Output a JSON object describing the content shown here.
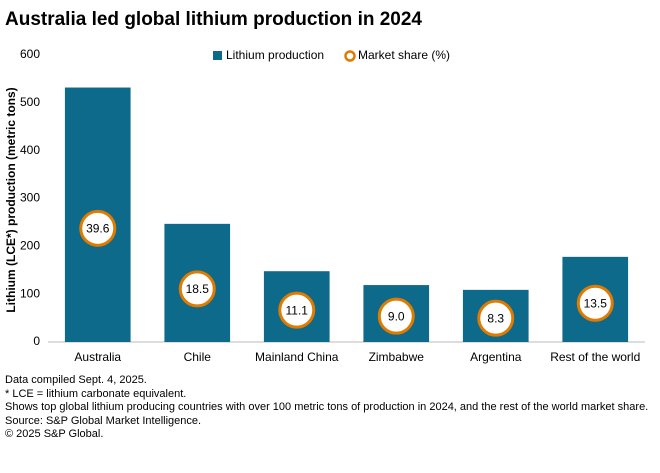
{
  "chart_data": {
    "type": "bar",
    "title": "Australia led global lithium production in 2024",
    "y_label": "Lithium (LCE*) production (metric tons)",
    "categories": [
      "Australia",
      "Chile",
      "Mainland China",
      "Zimbabwe",
      "Argentina",
      "Rest of the world"
    ],
    "series": [
      {
        "name": "Lithium production",
        "color": "#0e6a8a",
        "values": [
          532,
          247,
          148,
          119,
          109,
          178
        ]
      },
      {
        "name": "Market share (%)",
        "color": "#e07b00",
        "axis": "y2",
        "values": [
          39.6,
          18.5,
          11.1,
          9,
          8.3,
          13.5
        ],
        "value_labels": [
          "39.6",
          "18.5",
          "11.1",
          "9.0",
          "8.3",
          "13.5"
        ]
      }
    ],
    "ylim": [
      0,
      600
    ],
    "yticks": [
      0,
      100,
      200,
      300,
      400,
      500,
      600
    ],
    "y2lim": [
      0,
      100
    ],
    "grid": false,
    "legend": "top",
    "notes": [
      "Data compiled Sept. 4, 2025.",
      "* LCE = lithium carbonate equivalent.",
      "Shows top global lithium producing countries with over 100 metric tons of production in 2024, and the rest of the world market share.",
      "Source: S&P Global Market Intelligence.",
      "© 2025 S&P Global."
    ]
  }
}
